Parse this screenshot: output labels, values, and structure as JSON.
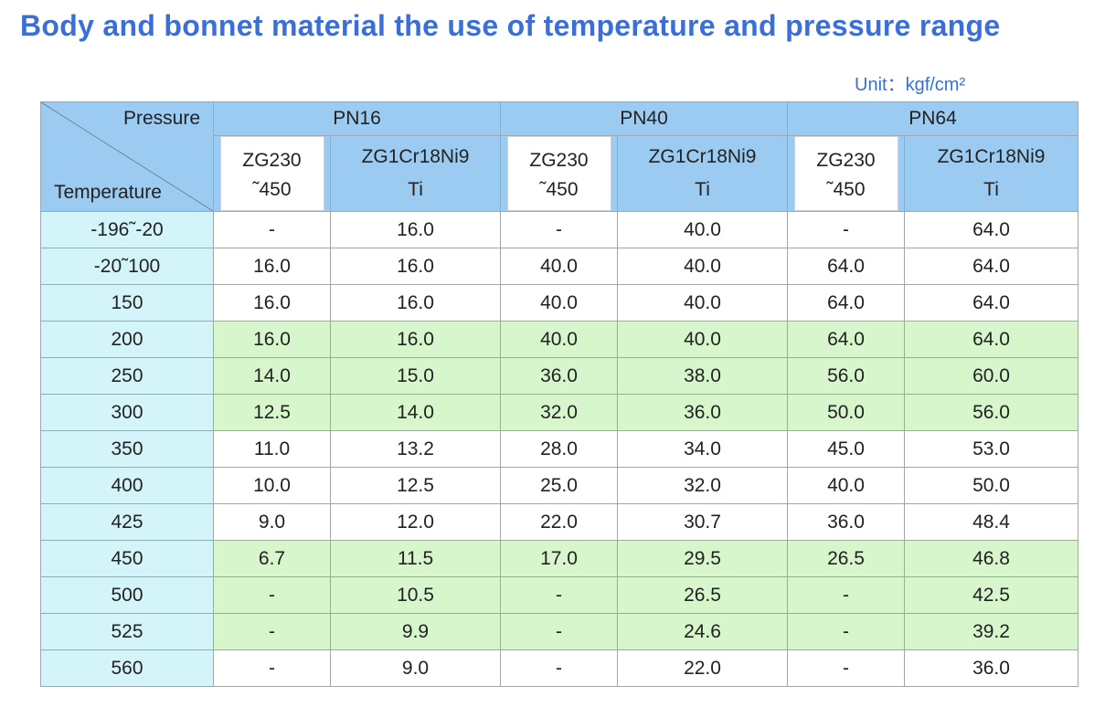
{
  "title": "Body and bonnet material the use of temperature and pressure range",
  "unit": "Unit：kgf/cm²",
  "corner": {
    "pressure": "Pressure",
    "temperature": "Temperature"
  },
  "groups": [
    "PN16",
    "PN40",
    "PN64"
  ],
  "sub": [
    {
      "l1": "ZG230",
      "l2": "˜450"
    },
    {
      "l1": "ZG1Cr18Ni9",
      "l2": "Ti"
    },
    {
      "l1": "ZG230",
      "l2": "˜450"
    },
    {
      "l1": "ZG1Cr18Ni9",
      "l2": "Ti"
    },
    {
      "l1": "ZG230",
      "l2": "˜450"
    },
    {
      "l1": "ZG1Cr18Ni9",
      "l2": "Ti"
    }
  ],
  "rows": [
    {
      "temp": "-196˜-20",
      "green": false,
      "v": [
        "-",
        "16.0",
        "-",
        "40.0",
        "-",
        "64.0"
      ]
    },
    {
      "temp": "-20˜100",
      "green": false,
      "v": [
        "16.0",
        "16.0",
        "40.0",
        "40.0",
        "64.0",
        "64.0"
      ]
    },
    {
      "temp": "150",
      "green": false,
      "v": [
        "16.0",
        "16.0",
        "40.0",
        "40.0",
        "64.0",
        "64.0"
      ]
    },
    {
      "temp": "200",
      "green": true,
      "v": [
        "16.0",
        "16.0",
        "40.0",
        "40.0",
        "64.0",
        "64.0"
      ]
    },
    {
      "temp": "250",
      "green": true,
      "v": [
        "14.0",
        "15.0",
        "36.0",
        "38.0",
        "56.0",
        "60.0"
      ]
    },
    {
      "temp": "300",
      "green": true,
      "v": [
        "12.5",
        "14.0",
        "32.0",
        "36.0",
        "50.0",
        "56.0"
      ]
    },
    {
      "temp": "350",
      "green": false,
      "v": [
        "11.0",
        "13.2",
        "28.0",
        "34.0",
        "45.0",
        "53.0"
      ]
    },
    {
      "temp": "400",
      "green": false,
      "v": [
        "10.0",
        "12.5",
        "25.0",
        "32.0",
        "40.0",
        "50.0"
      ]
    },
    {
      "temp": "425",
      "green": false,
      "v": [
        "9.0",
        "12.0",
        "22.0",
        "30.7",
        "36.0",
        "48.4"
      ]
    },
    {
      "temp": "450",
      "green": true,
      "v": [
        "6.7",
        "11.5",
        "17.0",
        "29.5",
        "26.5",
        "46.8"
      ]
    },
    {
      "temp": "500",
      "green": true,
      "v": [
        "-",
        "10.5",
        "-",
        "26.5",
        "-",
        "42.5"
      ]
    },
    {
      "temp": "525",
      "green": true,
      "v": [
        "-",
        "9.9",
        "-",
        "24.6",
        "-",
        "39.2"
      ]
    },
    {
      "temp": "560",
      "green": false,
      "v": [
        "-",
        "9.0",
        "-",
        "22.0",
        "-",
        "36.0"
      ]
    }
  ],
  "colors": {
    "title": "#3a6fd8",
    "header": "#9ccbf2",
    "temp_column": "#d3f5fa",
    "highlight_row": "#d7f6cc",
    "border": "#9aa7b8"
  }
}
